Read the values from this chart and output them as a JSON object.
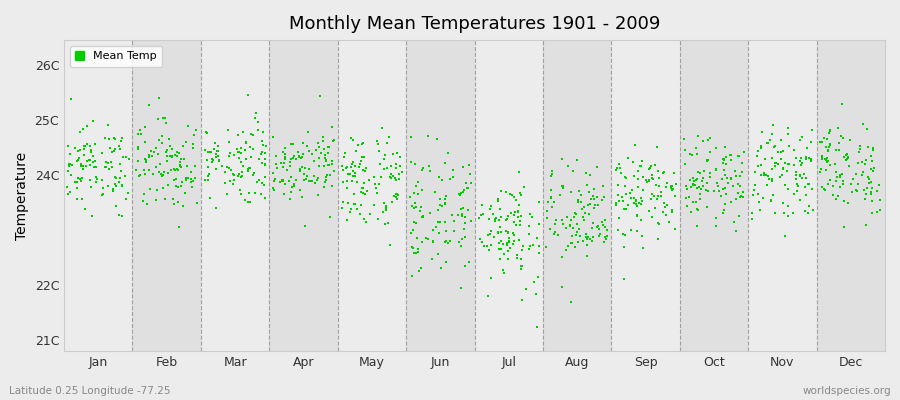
{
  "title": "Monthly Mean Temperatures 1901 - 2009",
  "ylabel": "Temperature",
  "xlabel_labels": [
    "Jan",
    "Feb",
    "Mar",
    "Apr",
    "May",
    "Jun",
    "Jul",
    "Aug",
    "Sep",
    "Oct",
    "Nov",
    "Dec"
  ],
  "ytick_labels": [
    "21C",
    "22C",
    "24C",
    "25C",
    "26C"
  ],
  "ytick_values": [
    21,
    22,
    24,
    25,
    26
  ],
  "ylim": [
    20.8,
    26.45
  ],
  "xlim": [
    -0.5,
    12.5
  ],
  "dot_color": "#00cc00",
  "dot_size": 3,
  "legend_label": "Mean Temp",
  "subtitle_left": "Latitude 0.25 Longitude -77.25",
  "subtitle_right": "worldspecies.org",
  "bg_light": "#ececec",
  "bg_dark": "#e0e0e0",
  "n_years": 109,
  "monthly_means": [
    24.15,
    24.2,
    24.25,
    24.2,
    23.9,
    23.3,
    23.0,
    23.2,
    23.6,
    23.9,
    24.05,
    24.1
  ],
  "monthly_stds": [
    0.38,
    0.42,
    0.38,
    0.32,
    0.45,
    0.58,
    0.52,
    0.48,
    0.4,
    0.36,
    0.38,
    0.42
  ]
}
